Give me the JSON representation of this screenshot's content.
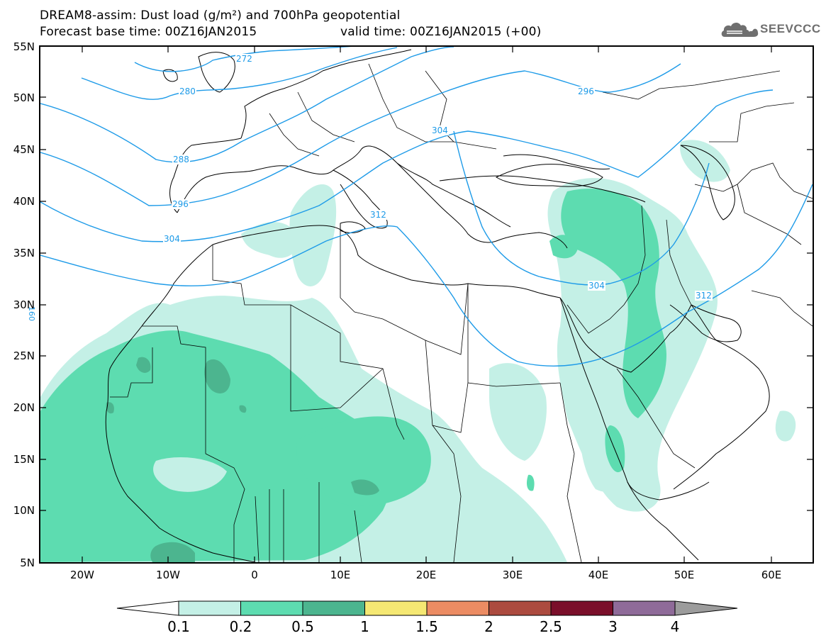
{
  "header": {
    "title_line1": "DREAM8-assim: Dust load (g/m²) and 700hPa geopotential",
    "title_line2_left": "Forecast base time: 00Z16JAN2015",
    "title_line2_right": "valid time: 00Z16JAN2015 (+00)"
  },
  "logo": {
    "text": "SEEVCCC",
    "icon": "cloud-icon",
    "color": "#6f6f6f"
  },
  "map": {
    "lat_range": [
      5,
      55
    ],
    "lon_range": [
      -25,
      65
    ],
    "lat_labels": [
      "55N",
      "50N",
      "45N",
      "40N",
      "35N",
      "30N",
      "25N",
      "20N",
      "15N",
      "10N",
      "5N"
    ],
    "lon_labels": [
      "20W",
      "10W",
      "0",
      "10E",
      "20E",
      "30E",
      "40E",
      "50E",
      "60E"
    ],
    "contour_color": "#1e9be8",
    "contour_labels": [
      "272",
      "280",
      "288",
      "296",
      "304",
      "312",
      "296",
      "304",
      "304",
      "312"
    ],
    "side_label": "160"
  },
  "colorbar": {
    "levels": [
      "0.1",
      "0.2",
      "0.5",
      "1",
      "1.5",
      "2",
      "2.5",
      "3",
      "4"
    ],
    "colors": [
      "#ffffff",
      "#c4f0e6",
      "#5ddcb0",
      "#4cb58f",
      "#f5e873",
      "#ec8c63",
      "#ac4b3f",
      "#7a0f2a",
      "#8f6b99",
      "#9c9c9c"
    ]
  }
}
